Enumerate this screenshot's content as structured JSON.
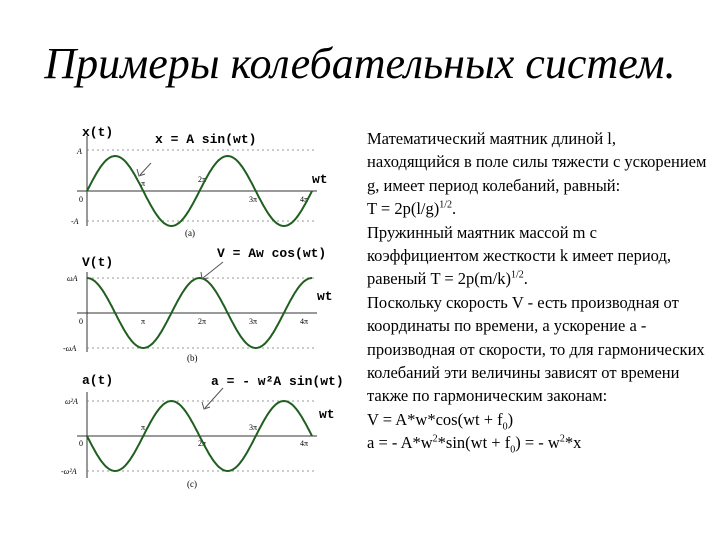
{
  "slide": {
    "title": "Примеры колебательных систем."
  },
  "figure": {
    "panels": [
      {
        "ylabel": "x(t)",
        "equation": "x = A sin(wt)",
        "xlabel": "wt",
        "ytick_top": "A",
        "ytick_bottom": "-A",
        "x_ticks": [
          "π",
          "2π",
          "3π",
          "4π"
        ],
        "origin": "0",
        "caption": "(a)",
        "curve": "sin",
        "color": "#1f5f1f"
      },
      {
        "ylabel": "V(t)",
        "equation": "V = Aw cos(wt)",
        "xlabel": "wt",
        "ytick_top": "ωA",
        "ytick_bottom": "-ωA",
        "x_ticks": [
          "π",
          "2π",
          "3π",
          "4π"
        ],
        "origin": "0",
        "caption": "(b)",
        "curve": "cos",
        "color": "#1f5f1f"
      },
      {
        "ylabel": "a(t)",
        "equation": "a = - w²A sin(wt)",
        "xlabel": "wt",
        "ytick_top": "ω²A",
        "ytick_bottom": "-ω²A",
        "x_ticks": [
          "π",
          "2π",
          "3π",
          "4π"
        ],
        "origin": "0",
        "caption": "(c)",
        "curve": "negsin",
        "color": "#1f5f1f"
      }
    ]
  },
  "text": {
    "p1": "Математический маятник длиной l, находящийся в поле силы тяжести с ускорением g, имеет период колебаний, равный:",
    "p2_main": "T = 2p(l/g)",
    "p2_sup": "1/2",
    "p2_end": ".",
    "p3_main": "Пружинный маятник массой m с коэффициентом жесткости k имеет период, равеный T = 2p(m/k)",
    "p3_sup": "1/2",
    "p3_end": ".",
    "p4": "Поскольку скорость V - есть производная от координаты по времени, а ускорение a - производная от скорости, то для гармонических колебаний эти величины зависят от времени также по гармоническим законам:",
    "eq1_a": "V = A*w*cos(wt + f",
    "eq1_sub": "0",
    "eq1_b": ")",
    "eq2_a": "a = - A*w",
    "eq2_sup1": "2",
    "eq2_b": "*sin(wt + f",
    "eq2_sub": "0",
    "eq2_c": ") = - w",
    "eq2_sup2": "2",
    "eq2_d": "*x"
  }
}
